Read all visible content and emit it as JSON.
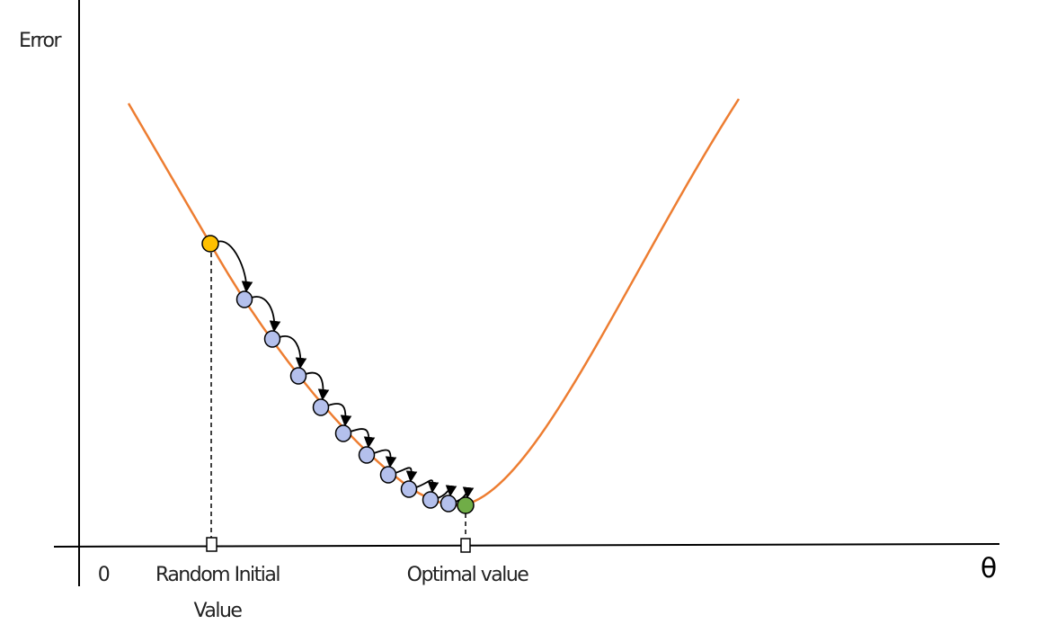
{
  "axis_labels": {
    "y": "Error",
    "x": "θ",
    "origin": "0"
  },
  "markers": {
    "initial": [
      "Random Initial",
      "Value"
    ],
    "optimal": "Optimal value"
  }
}
